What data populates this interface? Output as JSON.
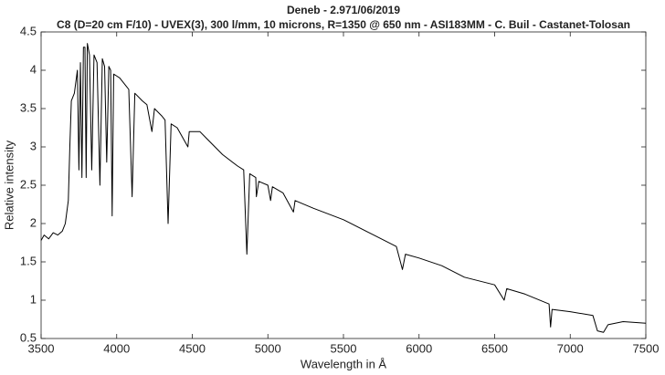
{
  "chart_data": {
    "type": "line",
    "title": "Deneb - 2.971/06/2019",
    "subtitle": "C8 (D=20 cm F/10) - UVEX(3), 300 l/mm, 10 microns, R=1350 @ 650 nm - ASI183MM - C. Buil - Castanet-Tolosan",
    "xlabel": "Wavelength in Å",
    "ylabel": "Relative intensity",
    "xlim": [
      3500,
      7500
    ],
    "xticks": [
      3500,
      4000,
      4500,
      5000,
      5500,
      6000,
      6500,
      7000,
      7500
    ],
    "ylim": [
      0.5,
      4.5
    ],
    "yticks": [
      0.5,
      1,
      1.5,
      2,
      2.5,
      3,
      3.5,
      4,
      4.5
    ],
    "grid": false,
    "x": [
      3500,
      3520,
      3550,
      3580,
      3610,
      3640,
      3660,
      3680,
      3690,
      3700,
      3720,
      3740,
      3750,
      3760,
      3770,
      3780,
      3790,
      3798,
      3806,
      3820,
      3835,
      3850,
      3870,
      3889,
      3905,
      3920,
      3934,
      3948,
      3960,
      3970,
      3980,
      4020,
      4060,
      4080,
      4102,
      4120,
      4170,
      4200,
      4233,
      4250,
      4300,
      4320,
      4340,
      4360,
      4400,
      4471,
      4480,
      4550,
      4600,
      4700,
      4800,
      4840,
      4861,
      4880,
      4920,
      4924,
      4940,
      5000,
      5018,
      5030,
      5100,
      5169,
      5180,
      5300,
      5500,
      5700,
      5850,
      5890,
      5910,
      6000,
      6150,
      6300,
      6500,
      6563,
      6580,
      6700,
      6860,
      6870,
      6880,
      7000,
      7150,
      7180,
      7220,
      7250,
      7350,
      7500
    ],
    "series": [
      {
        "color": "#000000",
        "values": [
          1.78,
          1.85,
          1.8,
          1.88,
          1.85,
          1.9,
          2.0,
          2.3,
          3.0,
          3.6,
          3.7,
          4.0,
          2.7,
          4.1,
          2.6,
          4.3,
          4.3,
          2.6,
          4.35,
          4.2,
          2.7,
          4.2,
          4.1,
          2.5,
          4.15,
          4.05,
          2.8,
          4.05,
          4.0,
          2.1,
          3.95,
          3.9,
          3.8,
          3.75,
          2.35,
          3.7,
          3.6,
          3.55,
          3.2,
          3.5,
          3.4,
          3.35,
          2.0,
          3.3,
          3.25,
          3.0,
          3.2,
          3.2,
          3.1,
          2.9,
          2.75,
          2.7,
          1.6,
          2.65,
          2.6,
          2.35,
          2.55,
          2.5,
          2.3,
          2.48,
          2.4,
          2.15,
          2.3,
          2.2,
          2.05,
          1.85,
          1.7,
          1.4,
          1.6,
          1.55,
          1.45,
          1.3,
          1.2,
          1.0,
          1.15,
          1.08,
          0.95,
          0.65,
          0.88,
          0.85,
          0.8,
          0.6,
          0.58,
          0.68,
          0.72,
          0.7
        ]
      }
    ]
  }
}
